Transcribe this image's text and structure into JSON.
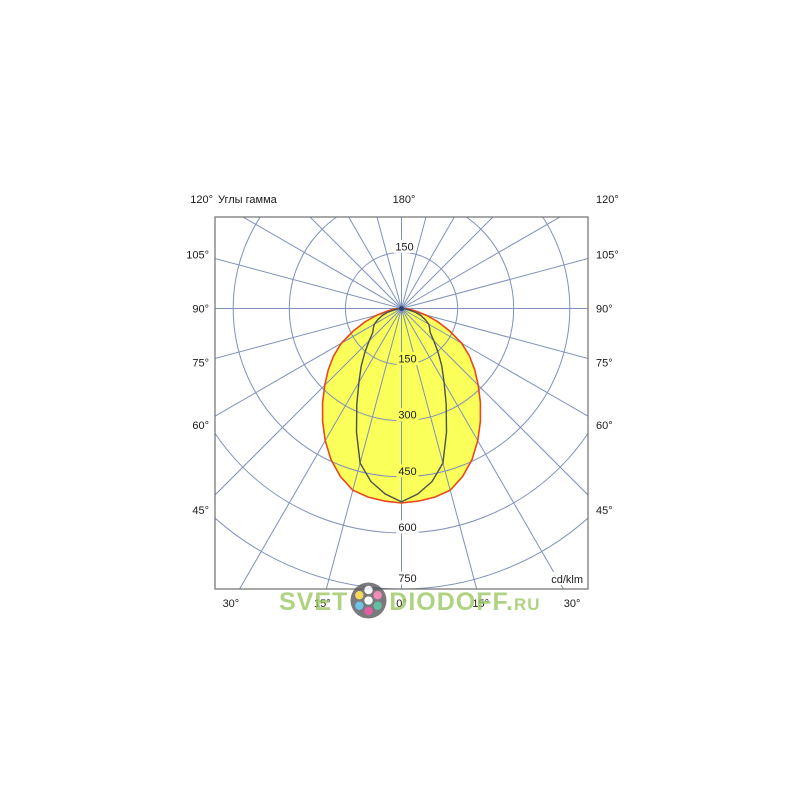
{
  "chart": {
    "title": "Углы гамма",
    "top_center_label": "180°",
    "top_left_label": "120°",
    "top_right_label": "120°",
    "units_label": "cd/klm",
    "side_labels": [
      {
        "text": "105°",
        "gamma": 105
      },
      {
        "text": "90°",
        "gamma": 90
      },
      {
        "text": "75°",
        "gamma": 75
      },
      {
        "text": "60°",
        "gamma": 60
      },
      {
        "text": "45°",
        "gamma": 45
      }
    ],
    "bottom_labels": [
      {
        "text": "30°",
        "gamma": -30
      },
      {
        "text": "15°",
        "gamma": -15
      },
      {
        "text": "0°",
        "gamma": 0
      },
      {
        "text": "15°",
        "gamma": 15
      },
      {
        "text": "30°",
        "gamma": 30
      }
    ],
    "radial_tick_labels": [
      "150",
      "300",
      "450",
      "600",
      "750"
    ],
    "top_radial_tick_label": "150",
    "colors": {
      "grid": "#7e91bb",
      "border": "#6f6f6f",
      "curve_outer": "#e8481c",
      "curve_fill": "#fbff5a",
      "curve_inner": "#4a5149",
      "text": "#1a1a1a",
      "center_dot": "#27407c"
    }
  },
  "chart_data": {
    "type": "polar_photometric",
    "title": "Углы гамма",
    "units": "cd/klm",
    "radial_ticks": [
      150,
      300,
      450,
      600,
      750
    ],
    "r_max": 750,
    "angle_grid_step_deg": 15,
    "angle_labels_range_deg": [
      0,
      180
    ],
    "grid": true,
    "series": [
      {
        "name": "outer-curve-filled",
        "style": "filled",
        "gamma_deg": [
          0,
          5,
          10,
          15,
          20,
          25,
          30,
          35,
          40,
          45,
          50,
          55,
          60,
          65,
          70,
          75,
          80,
          85,
          90
        ],
        "values": [
          520,
          517,
          512,
          503,
          478,
          446,
          408,
          368,
          328,
          290,
          256,
          222,
          186,
          142,
          103,
          68,
          38,
          22,
          0
        ]
      },
      {
        "name": "inner-curve-outline",
        "style": "line",
        "gamma_deg": [
          0,
          5,
          10,
          15,
          20,
          25,
          30,
          35,
          40,
          45,
          50,
          55,
          60,
          65,
          70,
          75,
          80,
          85,
          90
        ],
        "values": [
          517,
          498,
          470,
          428,
          352,
          283,
          228,
          188,
          152,
          122,
          100,
          92,
          84,
          70,
          55,
          38,
          20,
          9,
          0
        ]
      }
    ]
  },
  "watermark": {
    "text_left": "SVET",
    "text_right": "DIODOFF.",
    "text_suffix": "RU",
    "color": "#9cc865",
    "logo_bg": "#59595c",
    "logo_dots": [
      {
        "dx": 0,
        "dy": 0,
        "color": "#ffffff"
      },
      {
        "dx": 0,
        "dy": -10.8,
        "color": "#ffffff"
      },
      {
        "dx": -9.4,
        "dy": -5.4,
        "color": "#f2d12e"
      },
      {
        "dx": 9.4,
        "dy": -5.4,
        "color": "#ef6fa8"
      },
      {
        "dx": -9.4,
        "dy": 5.4,
        "color": "#49b8e6"
      },
      {
        "dx": 9.4,
        "dy": 5.4,
        "color": "#3fae8c"
      },
      {
        "dx": 0,
        "dy": 10.8,
        "color": "#e0368c"
      }
    ]
  }
}
